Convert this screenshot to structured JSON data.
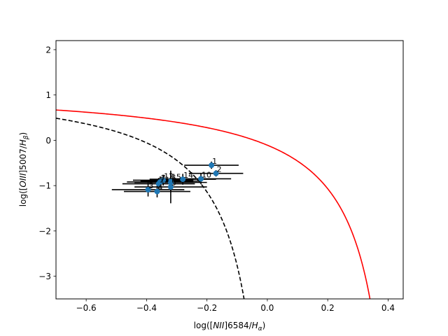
{
  "chart_data": {
    "type": "scatter",
    "title": "",
    "xlabel_parts": [
      "log([",
      "NII",
      "]6584/",
      "H",
      "α",
      ")"
    ],
    "ylabel_parts": [
      "log([",
      "OIII",
      "]5007/",
      "H",
      "β",
      ")"
    ],
    "xlim": [
      -0.7,
      0.45
    ],
    "ylim": [
      -3.5,
      2.2
    ],
    "xticks": [
      -0.6,
      -0.4,
      -0.2,
      0.0,
      0.2,
      0.4
    ],
    "xtick_labels": [
      "−0.6",
      "−0.4",
      "−0.2",
      "0.0",
      "0.2",
      "0.4"
    ],
    "yticks": [
      -3,
      -2,
      -1,
      0,
      1,
      2
    ],
    "ytick_labels": [
      "−3",
      "−2",
      "−1",
      "0",
      "1",
      "2"
    ],
    "grid": false,
    "marker_color": "#1f77b4",
    "errorbar_color": "#000000",
    "points": [
      {
        "label": "1",
        "x": -0.185,
        "y": -0.55,
        "xerr": 0.09,
        "yerr": 0.08
      },
      {
        "label": "2",
        "x": -0.17,
        "y": -0.73,
        "xerr": 0.09,
        "yerr": 0.07
      },
      {
        "label": "3",
        "x": -0.395,
        "y": -1.09,
        "xerr": 0.12,
        "yerr": 0.15
      },
      {
        "label": "4",
        "x": -0.365,
        "y": -1.13,
        "xerr": 0.11,
        "yerr": 0.13
      },
      {
        "label": "5",
        "x": -0.32,
        "y": -1.03,
        "xerr": 0.12,
        "yerr": 0.36
      },
      {
        "label": "6",
        "x": -0.32,
        "y": -0.93,
        "xerr": 0.12,
        "yerr": 0.22
      },
      {
        "label": "7",
        "x": -0.355,
        "y": -0.92,
        "xerr": 0.11,
        "yerr": 0.12
      },
      {
        "label": "10",
        "x": -0.22,
        "y": -0.85,
        "xerr": 0.1,
        "yerr": 0.12
      },
      {
        "label": "12",
        "x": -0.345,
        "y": -0.88,
        "xerr": 0.1,
        "yerr": 0.12
      },
      {
        "label": "13",
        "x": -0.36,
        "y": -0.96,
        "xerr": 0.12,
        "yerr": 0.13
      },
      {
        "label": "14",
        "x": -0.28,
        "y": -0.86,
        "xerr": 0.11,
        "yerr": 0.12
      },
      {
        "label": "15",
        "x": -0.32,
        "y": -0.9,
        "xerr": 0.1,
        "yerr": 0.13
      }
    ],
    "curves": [
      {
        "kind": "kauffmann03",
        "color": "#000000",
        "dashed": true
      },
      {
        "kind": "kewley01",
        "color": "#ff0000",
        "dashed": false
      }
    ]
  }
}
